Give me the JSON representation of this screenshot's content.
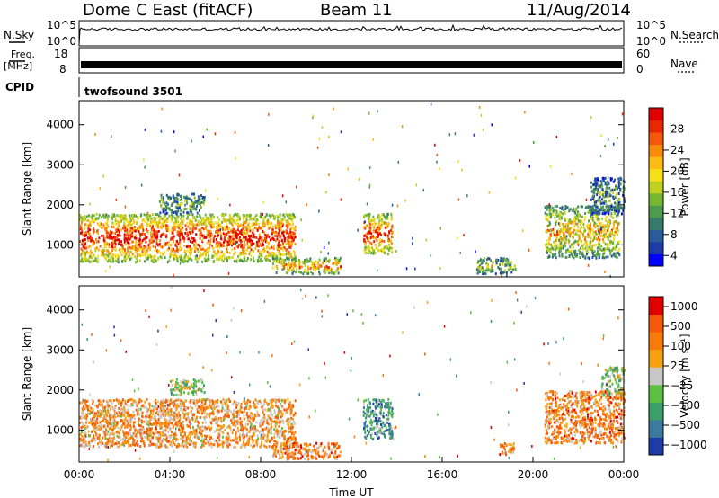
{
  "header": {
    "title": "Dome C East (fitACF)",
    "beam": "Beam 11",
    "date": "11/Aug/2014"
  },
  "top_panels": {
    "nsky_label": "N.Sky",
    "nsky_left_ticks": [
      "10^5",
      "10^0"
    ],
    "nsearch_label": "N.Search",
    "nsearch_right_ticks": [
      "10^5",
      "10^0"
    ],
    "freq_label_1": "Freq.",
    "freq_label_2": "[MHz]",
    "freq_ticks": [
      "18",
      "8"
    ],
    "nave_label": "Nave",
    "nave_ticks": [
      "60",
      "0"
    ],
    "cpid_label": "CPID",
    "cpid_value": "twofsound 3501"
  },
  "chart_data": [
    {
      "type": "heatmap",
      "name": "power",
      "ylabel": "Slant Range [km]",
      "y_ticks": [
        "4000",
        "3000",
        "2000",
        "1000"
      ],
      "y_tick_values": [
        4000,
        3000,
        2000,
        1000
      ],
      "ylim": [
        200,
        4600
      ],
      "colorbar_label": "Power [dB]",
      "colorbar_ticks": [
        "28",
        "24",
        "20",
        "16",
        "12",
        "8",
        "4"
      ],
      "colorbar_values": [
        28,
        24,
        20,
        16,
        12,
        8,
        4
      ],
      "colorbar_colors": [
        "#0000ff",
        "#1e3ca8",
        "#2a5b9a",
        "#3a7a6a",
        "#4e9a4e",
        "#76b832",
        "#c0d020",
        "#f8e018",
        "#fbbd14",
        "#f88a0c",
        "#f4580a",
        "#e82800",
        "#e00000"
      ],
      "clusters": [
        {
          "t0": 0.0,
          "t1": 9.5,
          "r0": 600,
          "r1": 1800,
          "level": 0.85
        },
        {
          "t0": 3.5,
          "t1": 5.5,
          "r0": 1800,
          "r1": 2300,
          "level": 0.35
        },
        {
          "t0": 8.5,
          "t1": 11.5,
          "r0": 300,
          "r1": 700,
          "level": 0.65
        },
        {
          "t0": 12.5,
          "t1": 13.8,
          "r0": 800,
          "r1": 1800,
          "level": 0.8
        },
        {
          "t0": 17.5,
          "t1": 19.2,
          "r0": 300,
          "r1": 700,
          "level": 0.45
        },
        {
          "t0": 20.5,
          "t1": 23.8,
          "r0": 700,
          "r1": 2000,
          "level": 0.6
        },
        {
          "t0": 22.5,
          "t1": 24.0,
          "r0": 1800,
          "r1": 2700,
          "level": 0.3
        }
      ]
    },
    {
      "type": "heatmap",
      "name": "velocity",
      "xlabel": "Time UT",
      "ylabel": "Slant Range [km]",
      "x_ticks": [
        "00:00",
        "04:00",
        "08:00",
        "12:00",
        "16:00",
        "20:00",
        "00:00"
      ],
      "x_tick_values": [
        0,
        4,
        8,
        12,
        16,
        20,
        24
      ],
      "xlim": [
        0,
        24
      ],
      "y_ticks": [
        "4000",
        "3000",
        "2000",
        "1000"
      ],
      "y_tick_values": [
        4000,
        3000,
        2000,
        1000
      ],
      "ylim": [
        200,
        4600
      ],
      "colorbar_label": "Velocity [m s⁻¹]",
      "colorbar_ticks": [
        "1000",
        "500",
        "100",
        "25",
        "−25",
        "−100",
        "−500",
        "−1000"
      ],
      "colorbar_values": [
        1000,
        500,
        100,
        25,
        -25,
        -100,
        -500,
        -1000
      ],
      "colorbar_colors": [
        "#1e3ca8",
        "#3c7aa0",
        "#3aa06a",
        "#5cc040",
        "#c8c8c8",
        "#f8a014",
        "#f87a0a",
        "#f45a08",
        "#e00000"
      ],
      "clusters": [
        {
          "t0": 0.0,
          "t1": 9.5,
          "r0": 600,
          "r1": 1800,
          "level": 0.65
        },
        {
          "t0": 4.0,
          "t1": 5.5,
          "r0": 1900,
          "r1": 2300,
          "level": 0.45
        },
        {
          "t0": 8.5,
          "t1": 11.5,
          "r0": 300,
          "r1": 700,
          "level": 0.7
        },
        {
          "t0": 12.5,
          "t1": 13.8,
          "r0": 800,
          "r1": 1800,
          "level": 0.3
        },
        {
          "t0": 18.5,
          "t1": 19.2,
          "r0": 400,
          "r1": 700,
          "level": 0.7
        },
        {
          "t0": 20.5,
          "t1": 24.0,
          "r0": 700,
          "r1": 2000,
          "level": 0.7
        },
        {
          "t0": 23.0,
          "t1": 24.0,
          "r0": 1900,
          "r1": 2600,
          "level": 0.45
        }
      ]
    }
  ]
}
